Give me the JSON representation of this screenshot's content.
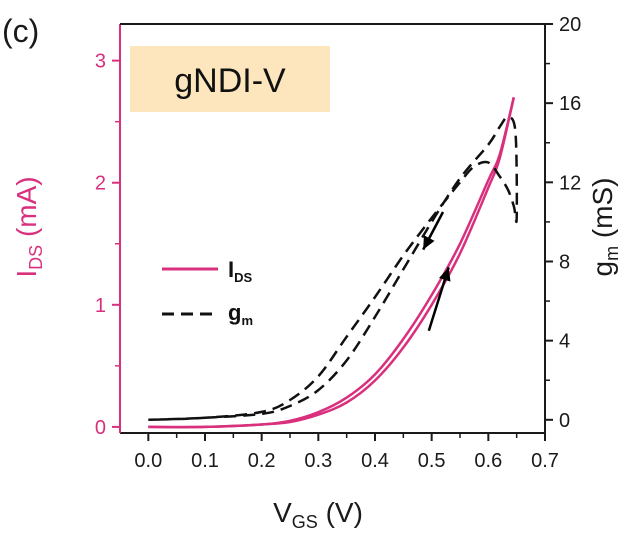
{
  "panel_label": "(c)",
  "colors": {
    "ids": "#d9307e",
    "gm": "#111111",
    "axis_black": "#1a1a1a",
    "inset_bg": "#fde6bd"
  },
  "chart_data": {
    "type": "line",
    "inset_title": "gNDI-V",
    "xlabel": {
      "main": "V",
      "sub": "GS",
      "unit": " (V)"
    },
    "ylabel_left": {
      "main": "I",
      "sub": "DS",
      "unit": " (mA)"
    },
    "ylabel_right": {
      "main": "g",
      "sub": "m",
      "unit": " (mS)"
    },
    "xlim": [
      -0.05,
      0.7
    ],
    "ylim_left": [
      -0.05,
      3.3
    ],
    "ylim_right": [
      -0.6667,
      20
    ],
    "xticks": [
      0.0,
      0.1,
      0.2,
      0.3,
      0.4,
      0.5,
      0.6,
      0.7
    ],
    "xtick_labels": [
      "0.0",
      "0.1",
      "0.2",
      "0.3",
      "0.4",
      "0.5",
      "0.6",
      "0.7"
    ],
    "yticks_left": [
      0,
      1,
      2,
      3
    ],
    "yticks_left_labels": [
      "0",
      "1",
      "2",
      "3"
    ],
    "yticks_right": [
      0,
      4,
      8,
      12,
      16,
      20
    ],
    "yticks_right_labels": [
      "0",
      "4",
      "8",
      "12",
      "16",
      "20"
    ],
    "legend_position": "center-left",
    "legend": [
      {
        "main": "I",
        "sub": "DS",
        "style": "solid"
      },
      {
        "main": "g",
        "sub": "m",
        "style": "dashed"
      }
    ],
    "series": [
      {
        "name": "I_DS",
        "axis": "left",
        "style": "solid",
        "forward": {
          "x": [
            0.0,
            0.1,
            0.2,
            0.25,
            0.3,
            0.35,
            0.4,
            0.45,
            0.5,
            0.55,
            0.6,
            0.62,
            0.645
          ],
          "y": [
            0.0,
            0.0,
            0.02,
            0.04,
            0.1,
            0.2,
            0.38,
            0.65,
            1.0,
            1.42,
            1.96,
            2.2,
            2.7
          ]
        },
        "reverse": {
          "x": [
            0.645,
            0.62,
            0.6,
            0.55,
            0.5,
            0.45,
            0.4,
            0.35,
            0.3,
            0.25,
            0.2,
            0.1,
            0.0
          ],
          "y": [
            2.7,
            2.23,
            2.02,
            1.5,
            1.08,
            0.72,
            0.43,
            0.24,
            0.12,
            0.05,
            0.02,
            0.0,
            0.0
          ]
        }
      },
      {
        "name": "g_m",
        "axis": "right",
        "style": "dashed",
        "x": [
          0.0,
          0.1,
          0.2,
          0.25,
          0.3,
          0.35,
          0.4,
          0.45,
          0.5,
          0.55,
          0.6,
          0.62,
          0.635,
          0.648,
          0.65,
          0.645,
          0.635,
          0.62,
          0.6,
          0.575,
          0.55,
          0.5,
          0.45,
          0.4,
          0.35,
          0.3,
          0.25,
          0.2,
          0.1,
          0.0
        ],
        "y": [
          0.0,
          0.1,
          0.3,
          0.7,
          1.5,
          3.0,
          5.2,
          7.6,
          10.0,
          12.2,
          13.9,
          14.8,
          15.3,
          14.5,
          10.2,
          10.8,
          11.6,
          12.3,
          13.0,
          12.8,
          12.0,
          10.2,
          8.3,
          6.2,
          4.2,
          2.2,
          1.0,
          0.4,
          0.1,
          0.0
        ]
      }
    ],
    "annotations": [
      {
        "type": "arrow",
        "direction": "down-left",
        "from": [
          0.52,
          10.5
        ],
        "to": [
          0.485,
          8.6
        ]
      },
      {
        "type": "arrow",
        "direction": "up-right",
        "from": [
          0.495,
          4.5
        ],
        "to": [
          0.53,
          7.7
        ]
      }
    ]
  }
}
